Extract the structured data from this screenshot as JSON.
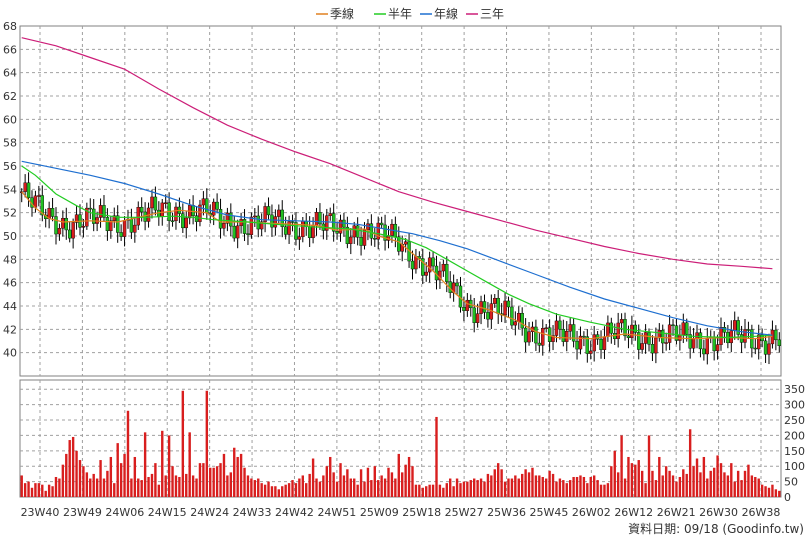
{
  "colors": {
    "quarter_ma": "#e08020",
    "half_year_ma": "#22cc22",
    "year_ma": "#1e6fd0",
    "three_year_ma": "#cc1e78",
    "candle_up": "#d81e1e",
    "candle_down": "#22c022",
    "volume_bar": "#d81e1e",
    "grid": "#a0a0a0"
  },
  "legend": [
    {
      "label": "季線",
      "color": "#e08020"
    },
    {
      "label": "半年",
      "color": "#22cc22"
    },
    {
      "label": "年線",
      "color": "#1e6fd0"
    },
    {
      "label": "三年",
      "color": "#cc1e78"
    }
  ],
  "footer": {
    "source": "資料日期: 09/18 (Goodinfo.tw)"
  },
  "chart_data": [
    {
      "type": "line",
      "title": "",
      "legend_position": "top-center",
      "grid": true,
      "x_tick_labels": [
        "23W40",
        "23W49",
        "24W06",
        "24W15",
        "24W24",
        "24W33",
        "24W42",
        "24W51",
        "25W09",
        "25W18",
        "25W27",
        "25W36",
        "25W45",
        "26W02",
        "26W12",
        "26W21",
        "26W30",
        "26W38"
      ],
      "ylim": [
        38,
        68
      ],
      "y_ticks": [
        40,
        42,
        44,
        46,
        48,
        50,
        52,
        54,
        56,
        58,
        60,
        62,
        64,
        66,
        68
      ],
      "series": [
        {
          "name": "季線",
          "points": [
            [
              0,
              53.8
            ],
            [
              4,
              52.4
            ],
            [
              8,
              51.5
            ],
            [
              12,
              51.2
            ],
            [
              20,
              51.3
            ],
            [
              28,
              51.2
            ],
            [
              34,
              51.6
            ],
            [
              40,
              52.0
            ],
            [
              46,
              52.2
            ],
            [
              54,
              52.0
            ],
            [
              58,
              51.2
            ],
            [
              66,
              51.2
            ],
            [
              72,
              51.1
            ],
            [
              80,
              51.0
            ],
            [
              86,
              50.9
            ],
            [
              92,
              50.5
            ],
            [
              100,
              50.6
            ],
            [
              104,
              50.0
            ],
            [
              110,
              49.5
            ],
            [
              114,
              48.5
            ],
            [
              120,
              47.0
            ],
            [
              126,
              45.2
            ],
            [
              130,
              44.2
            ],
            [
              136,
              43.7
            ],
            [
              144,
              42.8
            ],
            [
              150,
              41.8
            ],
            [
              156,
              41.3
            ],
            [
              166,
              41.2
            ],
            [
              176,
              41.6
            ],
            [
              186,
              41.3
            ],
            [
              196,
              41.2
            ],
            [
              206,
              41.3
            ],
            [
              214,
              41.2
            ],
            [
              219,
              41.4
            ]
          ]
        },
        {
          "name": "半年",
          "points": [
            [
              0,
              56.0
            ],
            [
              4,
              55.2
            ],
            [
              10,
              53.6
            ],
            [
              16,
              52.6
            ],
            [
              20,
              52.0
            ],
            [
              28,
              51.6
            ],
            [
              36,
              51.6
            ],
            [
              44,
              51.7
            ],
            [
              50,
              51.6
            ],
            [
              56,
              51.4
            ],
            [
              66,
              51.2
            ],
            [
              74,
              51.0
            ],
            [
              84,
              50.8
            ],
            [
              90,
              50.7
            ],
            [
              96,
              50.6
            ],
            [
              104,
              50.2
            ],
            [
              112,
              49.7
            ],
            [
              118,
              49.0
            ],
            [
              124,
              48.0
            ],
            [
              130,
              47.0
            ],
            [
              136,
              46.0
            ],
            [
              142,
              45.0
            ],
            [
              148,
              44.2
            ],
            [
              156,
              43.3
            ],
            [
              166,
              42.6
            ],
            [
              176,
              42.0
            ],
            [
              186,
              41.7
            ],
            [
              196,
              41.4
            ],
            [
              206,
              41.3
            ],
            [
              214,
              41.4
            ],
            [
              219,
              41.5
            ]
          ]
        },
        {
          "name": "年線",
          "points": [
            [
              0,
              56.4
            ],
            [
              10,
              55.8
            ],
            [
              20,
              55.2
            ],
            [
              30,
              54.5
            ],
            [
              40,
              53.6
            ],
            [
              50,
              52.6
            ],
            [
              60,
              51.8
            ],
            [
              70,
              51.4
            ],
            [
              80,
              51.3
            ],
            [
              90,
              51.2
            ],
            [
              98,
              51.0
            ],
            [
              106,
              50.6
            ],
            [
              114,
              50.2
            ],
            [
              122,
              49.6
            ],
            [
              130,
              48.9
            ],
            [
              140,
              47.8
            ],
            [
              150,
              46.7
            ],
            [
              160,
              45.6
            ],
            [
              170,
              44.6
            ],
            [
              180,
              43.8
            ],
            [
              190,
              43.0
            ],
            [
              200,
              42.3
            ],
            [
              210,
              41.8
            ],
            [
              219,
              41.5
            ]
          ]
        },
        {
          "name": "三年",
          "points": [
            [
              0,
              67.0
            ],
            [
              10,
              66.3
            ],
            [
              20,
              65.3
            ],
            [
              30,
              64.3
            ],
            [
              40,
              62.6
            ],
            [
              50,
              61.0
            ],
            [
              60,
              59.5
            ],
            [
              70,
              58.3
            ],
            [
              80,
              57.2
            ],
            [
              90,
              56.2
            ],
            [
              100,
              55.0
            ],
            [
              110,
              53.8
            ],
            [
              120,
              52.9
            ],
            [
              130,
              52.1
            ],
            [
              140,
              51.3
            ],
            [
              150,
              50.5
            ],
            [
              160,
              49.8
            ],
            [
              170,
              49.1
            ],
            [
              180,
              48.5
            ],
            [
              190,
              48.0
            ],
            [
              200,
              47.6
            ],
            [
              210,
              47.4
            ],
            [
              219,
              47.2
            ]
          ]
        }
      ]
    },
    {
      "type": "bar",
      "title": "",
      "ylim": [
        0,
        380
      ],
      "y_ticks": [
        0,
        50,
        100,
        150,
        200,
        250,
        300,
        350
      ],
      "x_tick_labels": [
        "23W40",
        "23W49",
        "24W06",
        "24W15",
        "24W24",
        "24W33",
        "24W42",
        "24W51",
        "25W09",
        "25W18",
        "25W27",
        "25W36",
        "25W45",
        "26W02",
        "26W12",
        "26W21",
        "26W30",
        "26W38"
      ],
      "values": [
        70,
        45,
        50,
        30,
        45,
        45,
        40,
        20,
        40,
        35,
        65,
        60,
        105,
        140,
        185,
        195,
        150,
        120,
        100,
        80,
        60,
        75,
        60,
        120,
        60,
        85,
        130,
        45,
        175,
        110,
        140,
        280,
        60,
        130,
        60,
        55,
        210,
        65,
        75,
        110,
        40,
        215,
        70,
        200,
        100,
        70,
        65,
        345,
        75,
        210,
        70,
        60,
        110,
        110,
        345,
        95,
        95,
        100,
        110,
        140,
        70,
        80,
        160,
        130,
        140,
        95,
        70,
        60,
        55,
        60,
        45,
        40,
        50,
        35,
        35,
        25,
        35,
        40,
        45,
        55,
        45,
        60,
        70,
        45,
        75,
        125,
        60,
        50,
        70,
        100,
        130,
        80,
        50,
        110,
        70,
        90,
        60,
        60,
        40,
        90,
        50,
        95,
        55,
        100,
        55,
        70,
        60,
        95,
        80,
        60,
        140,
        80,
        105,
        130,
        100,
        40,
        40,
        30,
        35,
        40,
        40,
        260,
        40,
        30,
        45,
        60,
        35,
        60,
        45,
        50,
        50,
        55,
        60,
        55,
        60,
        50,
        75,
        70,
        90,
        110,
        90,
        50,
        60,
        60,
        70,
        60,
        75,
        90,
        80,
        95,
        70,
        70,
        65,
        60,
        85,
        75,
        50,
        60,
        55,
        45,
        55,
        65,
        65,
        70,
        65,
        45,
        65,
        70,
        55,
        40,
        40,
        45,
        100,
        150,
        80,
        200,
        60,
        130,
        110,
        105,
        120,
        85,
        45,
        200,
        85,
        55,
        130,
        70,
        100,
        85,
        70,
        50,
        65,
        90,
        75,
        220,
        100,
        125,
        80,
        130,
        60,
        85,
        95,
        135,
        110,
        80,
        70,
        110,
        50,
        85,
        55,
        85,
        105,
        70,
        65,
        60,
        40,
        35,
        30,
        40,
        25,
        20
      ]
    }
  ]
}
